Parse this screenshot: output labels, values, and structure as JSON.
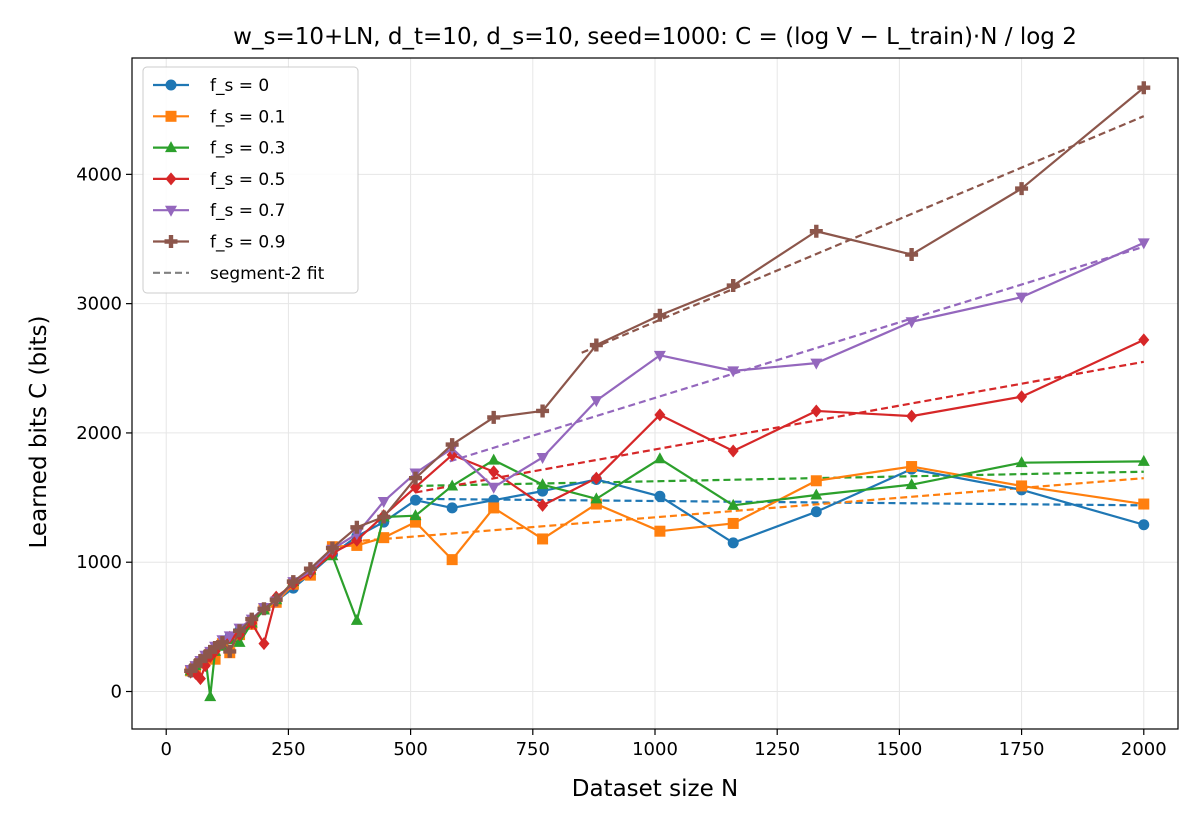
{
  "chart_data": {
    "type": "line",
    "title": "w_s=10+LN, d_t=10, d_s=10, seed=1000: C = (log V − L_train)·N / log 2",
    "xlabel": "Dataset size N",
    "ylabel": "Learned bits C (bits)",
    "xlim": [
      -70,
      2070
    ],
    "ylim": [
      -290,
      4900
    ],
    "xticks": [
      0,
      250,
      500,
      750,
      1000,
      1250,
      1500,
      1750,
      2000
    ],
    "yticks": [
      0,
      1000,
      2000,
      3000,
      4000
    ],
    "grid": true,
    "legend_position": "top-left",
    "series": [
      {
        "name": "f_s = 0",
        "color": "#1f77b4",
        "marker": "circle",
        "x": [
          50,
          60,
          70,
          80,
          90,
          100,
          115,
          130,
          150,
          175,
          200,
          225,
          260,
          295,
          340,
          390,
          445,
          510,
          585,
          670,
          770,
          880,
          1010,
          1160,
          1330,
          1525,
          1750,
          2000
        ],
        "y": [
          150,
          190,
          230,
          270,
          300,
          330,
          380,
          420,
          470,
          520,
          640,
          700,
          800,
          910,
          1060,
          1200,
          1310,
          1480,
          1420,
          1480,
          1550,
          1640,
          1510,
          1150,
          1390,
          1720,
          1560,
          1290
        ]
      },
      {
        "name": "f_s = 0.1",
        "color": "#ff7f0e",
        "marker": "square",
        "x": [
          50,
          60,
          70,
          80,
          90,
          100,
          115,
          130,
          150,
          175,
          200,
          225,
          260,
          295,
          340,
          390,
          445,
          510,
          585,
          670,
          770,
          880,
          1010,
          1160,
          1330,
          1525,
          1750,
          2000
        ],
        "y": [
          160,
          190,
          220,
          250,
          290,
          250,
          370,
          300,
          440,
          520,
          640,
          690,
          830,
          900,
          1120,
          1130,
          1190,
          1310,
          1020,
          1420,
          1180,
          1450,
          1240,
          1300,
          1630,
          1740,
          1590,
          1450
        ]
      },
      {
        "name": "f_s = 0.3",
        "color": "#2ca02c",
        "marker": "triangle-up",
        "x": [
          50,
          60,
          70,
          80,
          90,
          100,
          115,
          130,
          150,
          175,
          200,
          225,
          260,
          295,
          340,
          390,
          445,
          510,
          585,
          670,
          770,
          880,
          1010,
          1160,
          1330,
          1525,
          1750,
          2000
        ],
        "y": [
          160,
          200,
          240,
          270,
          -40,
          310,
          350,
          400,
          380,
          530,
          630,
          710,
          850,
          940,
          1050,
          550,
          1350,
          1360,
          1590,
          1790,
          1600,
          1490,
          1800,
          1440,
          1520,
          1600,
          1770,
          1780
        ]
      },
      {
        "name": "f_s = 0.5",
        "color": "#d62728",
        "marker": "diamond",
        "x": [
          50,
          60,
          70,
          80,
          90,
          100,
          115,
          130,
          150,
          175,
          200,
          225,
          260,
          295,
          340,
          390,
          445,
          510,
          585,
          670,
          770,
          880,
          1010,
          1160,
          1330,
          1525,
          1750,
          2000
        ],
        "y": [
          150,
          140,
          100,
          200,
          270,
          310,
          380,
          420,
          440,
          530,
          370,
          730,
          830,
          920,
          1070,
          1170,
          1360,
          1580,
          1830,
          1700,
          1440,
          1650,
          2140,
          1860,
          2170,
          2130,
          2280,
          2720
        ]
      },
      {
        "name": "f_s = 0.7",
        "color": "#9467bd",
        "marker": "triangle-down",
        "x": [
          50,
          60,
          70,
          80,
          90,
          100,
          115,
          130,
          150,
          175,
          200,
          225,
          260,
          295,
          340,
          390,
          445,
          510,
          585,
          670,
          770,
          880,
          1010,
          1160,
          1330,
          1525,
          1750,
          2000
        ],
        "y": [
          170,
          200,
          240,
          280,
          310,
          350,
          400,
          430,
          490,
          560,
          650,
          700,
          850,
          930,
          1100,
          1220,
          1470,
          1690,
          1880,
          1580,
          1810,
          2250,
          2600,
          2480,
          2540,
          2860,
          3050,
          3470
        ]
      },
      {
        "name": "f_s = 0.9",
        "color": "#8c564b",
        "marker": "plus",
        "x": [
          50,
          60,
          70,
          80,
          90,
          100,
          115,
          130,
          150,
          175,
          200,
          225,
          260,
          295,
          340,
          390,
          445,
          510,
          585,
          670,
          770,
          880,
          1010,
          1160,
          1330,
          1525,
          1750,
          2000
        ],
        "y": [
          160,
          200,
          240,
          270,
          310,
          340,
          380,
          310,
          470,
          560,
          640,
          710,
          850,
          950,
          1110,
          1270,
          1350,
          1650,
          1910,
          2120,
          2170,
          2680,
          2910,
          3140,
          3560,
          3380,
          3890,
          4670
        ]
      }
    ],
    "fits": [
      {
        "legend": "segment-2 fit",
        "color": "#1f77b4",
        "x": [
          510,
          2000
        ],
        "y": [
          1490,
          1440
        ]
      },
      {
        "color": "#ff7f0e",
        "x": [
          380,
          2000
        ],
        "y": [
          1160,
          1650
        ]
      },
      {
        "color": "#2ca02c",
        "x": [
          510,
          2000
        ],
        "y": [
          1590,
          1700
        ]
      },
      {
        "color": "#d62728",
        "x": [
          510,
          2000
        ],
        "y": [
          1540,
          2550
        ]
      },
      {
        "color": "#9467bd",
        "x": [
          580,
          2000
        ],
        "y": [
          1780,
          3440
        ]
      },
      {
        "color": "#8c564b",
        "x": [
          850,
          2000
        ],
        "y": [
          2620,
          4450
        ]
      }
    ],
    "legend": [
      {
        "label": "f_s = 0",
        "color": "#1f77b4",
        "marker": "circle",
        "style": "solid"
      },
      {
        "label": "f_s = 0.1",
        "color": "#ff7f0e",
        "marker": "square",
        "style": "solid"
      },
      {
        "label": "f_s = 0.3",
        "color": "#2ca02c",
        "marker": "triangle-up",
        "style": "solid"
      },
      {
        "label": "f_s = 0.5",
        "color": "#d62728",
        "marker": "diamond",
        "style": "solid"
      },
      {
        "label": "f_s = 0.7",
        "color": "#9467bd",
        "marker": "triangle-down",
        "style": "solid"
      },
      {
        "label": "f_s = 0.9",
        "color": "#8c564b",
        "marker": "plus",
        "style": "solid"
      },
      {
        "label": "segment-2 fit",
        "color": "#808080",
        "marker": "none",
        "style": "dashed"
      }
    ]
  }
}
